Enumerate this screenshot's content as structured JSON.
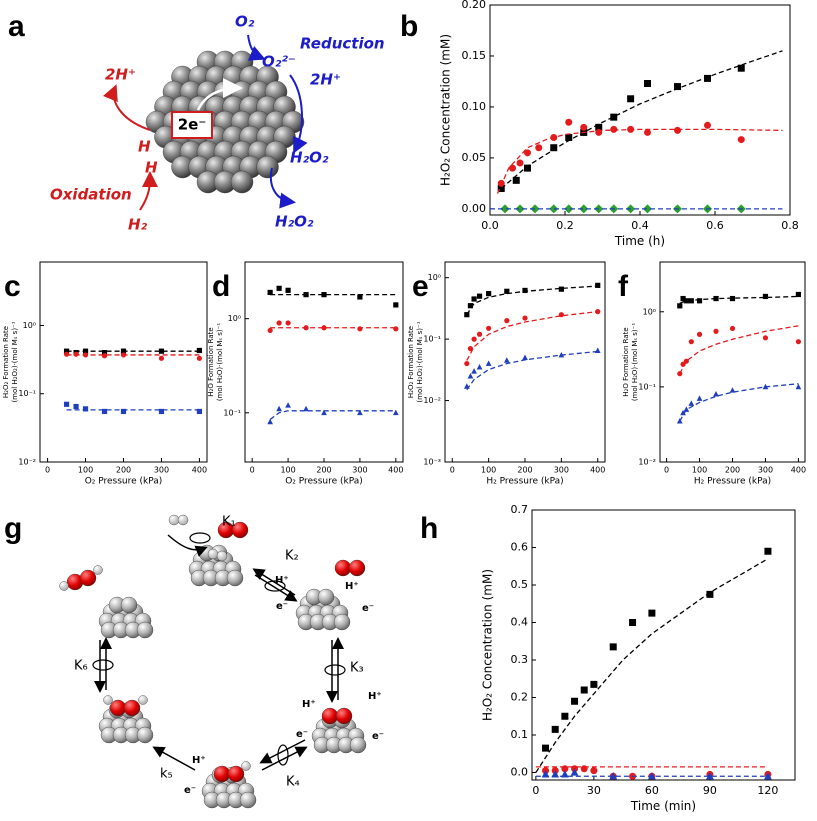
{
  "panel_labels": [
    "a",
    "b",
    "c",
    "d",
    "e",
    "f",
    "g",
    "h"
  ],
  "diagram_a": {
    "electrons": "2e⁻",
    "reduction": "Reduction",
    "oxidation": "Oxidation",
    "o2": "O₂",
    "superoxide": "O₂²⁻",
    "protons_blue": "2H⁺",
    "h2o2_surface": "H₂O₂",
    "h2o2_released": "H₂O₂",
    "protons_red": "2H⁺",
    "h_top": "H",
    "h_bottom": "H",
    "h2": "H₂"
  },
  "diagram_g": {
    "rates": [
      "K₁",
      "K₂",
      "K₃",
      "K₄",
      "k₅",
      "K₆"
    ],
    "species": [
      "H⁺",
      "H⁺",
      "e⁻",
      "e⁻",
      "H⁺",
      "H⁺",
      "e⁻",
      "e⁻",
      "H⁺",
      "e⁻"
    ]
  },
  "chart_data": [
    {
      "type": "scatter",
      "ylabel": [
        "H₂O₂ Concentration (mM)"
      ],
      "xlabel": "Time (h)",
      "xlim": [
        0,
        0.8
      ],
      "ylim": [
        -0.006,
        0.2
      ],
      "xticks": [
        {
          "value": 0,
          "label": "0.0"
        },
        0.2,
        0.4,
        0.6,
        0.8
      ],
      "yticks": [
        {
          "value": 0,
          "label": "0.00"
        },
        0.05,
        {
          "value": 0.1,
          "label": "0.10"
        },
        0.15,
        {
          "value": 0.2,
          "label": "0.20"
        }
      ],
      "series": [
        {
          "color": "#000000",
          "marker": "square",
          "x": [
            0.03,
            0.07,
            0.1,
            0.17,
            0.21,
            0.25,
            0.29,
            0.33,
            0.375,
            0.42,
            0.5,
            0.58,
            0.67
          ],
          "values": [
            0.02,
            0.028,
            0.04,
            0.06,
            0.07,
            0.075,
            0.08,
            0.09,
            0.108,
            0.123,
            0.12,
            0.128,
            0.138
          ]
        },
        {
          "color": "#e41a1c",
          "marker": "circle",
          "x": [
            0.03,
            0.06,
            0.08,
            0.1,
            0.13,
            0.17,
            0.21,
            0.25,
            0.29,
            0.33,
            0.375,
            0.42,
            0.5,
            0.58,
            0.67
          ],
          "values": [
            0.025,
            0.04,
            0.045,
            0.055,
            0.06,
            0.07,
            0.085,
            0.08,
            0.075,
            0.078,
            0.078,
            0.075,
            0.077,
            0.082,
            0.068
          ]
        },
        {
          "color": "#2ca02c",
          "marker": "diamond",
          "x": [
            0.04,
            0.08,
            0.12,
            0.17,
            0.21,
            0.25,
            0.29,
            0.33,
            0.375,
            0.42,
            0.5,
            0.58,
            0.67
          ],
          "values": [
            0,
            0,
            0,
            0,
            0,
            0,
            0,
            0,
            0,
            0,
            0,
            0,
            0
          ]
        },
        {
          "color": "#000000",
          "style": "dashed",
          "x": [
            0.03,
            0.1,
            0.2,
            0.3,
            0.4,
            0.5,
            0.6,
            0.7,
            0.78
          ],
          "values": [
            0.02,
            0.042,
            0.065,
            0.085,
            0.103,
            0.118,
            0.132,
            0.145,
            0.155
          ]
        },
        {
          "color": "#e41a1c",
          "style": "dashed",
          "x": [
            0.02,
            0.05,
            0.1,
            0.15,
            0.2,
            0.3,
            0.4,
            0.6,
            0.78
          ],
          "values": [
            0.015,
            0.04,
            0.06,
            0.068,
            0.073,
            0.077,
            0.078,
            0.078,
            0.077
          ]
        },
        {
          "color": "#1f3fbf",
          "style": "dashed",
          "x": [
            0,
            0.78
          ],
          "values": [
            0,
            0
          ]
        }
      ]
    },
    {
      "type": "scatter",
      "log_y": true,
      "ylabel": [
        "H₂O₂ Formation Rate",
        "(mol H₂O₂)·(mol Mₛ s)⁻¹"
      ],
      "xlabel": "O₂ Pressure (kPa)",
      "xlim": [
        -20,
        420
      ],
      "ylim": [
        0.01,
        8.5
      ],
      "xticks": [
        0,
        100,
        200,
        300,
        400
      ],
      "yticks": [
        {
          "value": 0.01,
          "label": "10⁻²"
        },
        {
          "value": 0.1,
          "label": "10⁻¹"
        },
        {
          "value": 1,
          "label": "10⁰"
        }
      ],
      "series": [
        {
          "color": "#000000",
          "marker": "square",
          "x": [
            50,
            75,
            100,
            150,
            200,
            300,
            400
          ],
          "values": [
            0.42,
            0.4,
            0.42,
            0.4,
            0.42,
            0.42,
            0.43
          ]
        },
        {
          "color": "#e41a1c",
          "marker": "circle",
          "x": [
            50,
            75,
            100,
            150,
            200,
            300,
            400
          ],
          "values": [
            0.38,
            0.38,
            0.37,
            0.36,
            0.37,
            0.33,
            0.33
          ]
        },
        {
          "color": "#1f3fbf",
          "marker": "square",
          "x": [
            50,
            75,
            100,
            150,
            200,
            300,
            400
          ],
          "values": [
            0.07,
            0.065,
            0.06,
            0.055,
            0.055,
            0.055,
            0.055
          ]
        },
        {
          "color": "#000000",
          "style": "dashed",
          "x": [
            50,
            400
          ],
          "values": [
            0.42,
            0.42
          ]
        },
        {
          "color": "#e41a1c",
          "style": "dashed",
          "x": [
            50,
            400
          ],
          "values": [
            0.37,
            0.37
          ]
        },
        {
          "color": "#1f3fbf",
          "style": "dashed",
          "x": [
            50,
            400
          ],
          "values": [
            0.058,
            0.058
          ]
        }
      ]
    },
    {
      "type": "scatter",
      "log_y": true,
      "ylabel": [
        "H₂O Formation Rate",
        "(mol H₂O)·(mol Mₛ s)⁻¹"
      ],
      "xlabel": "O₂ Pressure (kPa)",
      "xlim": [
        -20,
        420
      ],
      "ylim": [
        0.03,
        4
      ],
      "xticks": [
        0,
        100,
        200,
        300,
        400
      ],
      "yticks": [
        {
          "value": 0.1,
          "label": "10⁻¹"
        },
        {
          "value": 1,
          "label": "10⁰"
        }
      ],
      "series": [
        {
          "color": "#000000",
          "marker": "square",
          "x": [
            50,
            75,
            100,
            150,
            200,
            300,
            400
          ],
          "values": [
            1.9,
            2.1,
            2.0,
            1.8,
            1.8,
            1.7,
            1.4
          ]
        },
        {
          "color": "#e41a1c",
          "marker": "circle",
          "x": [
            50,
            75,
            100,
            150,
            200,
            300,
            400
          ],
          "values": [
            0.75,
            0.9,
            0.9,
            0.8,
            0.8,
            0.78,
            0.78
          ]
        },
        {
          "color": "#1f3fbf",
          "marker": "triangle",
          "x": [
            50,
            75,
            100,
            150,
            200,
            300,
            400
          ],
          "values": [
            0.08,
            0.11,
            0.12,
            0.11,
            0.1,
            0.1,
            0.1
          ]
        },
        {
          "color": "#000000",
          "style": "dashed",
          "x": [
            50,
            400
          ],
          "values": [
            1.8,
            1.8
          ]
        },
        {
          "color": "#e41a1c",
          "style": "dashed",
          "x": [
            50,
            400
          ],
          "values": [
            0.8,
            0.8
          ]
        },
        {
          "color": "#1f3fbf",
          "style": "dashed",
          "x": [
            50,
            75,
            100,
            400
          ],
          "values": [
            0.085,
            0.1,
            0.105,
            0.105
          ]
        }
      ]
    },
    {
      "type": "scatter",
      "log_y": true,
      "ylabel": [
        "H₂O₂ Formation Rate",
        "(mol H₂O₂)·(mol Mₛ s)⁻¹"
      ],
      "xlabel": "H₂ Pressure (kPa)",
      "xlim": [
        -20,
        420
      ],
      "ylim": [
        0.001,
        1.8
      ],
      "xticks": [
        0,
        100,
        200,
        300,
        400
      ],
      "yticks": [
        {
          "value": 0.001,
          "label": "10⁻³"
        },
        {
          "value": 0.01,
          "label": "10⁻²"
        },
        {
          "value": 0.1,
          "label": "10⁻¹"
        },
        {
          "value": 1,
          "label": "10⁰"
        }
      ],
      "series": [
        {
          "color": "#000000",
          "marker": "square",
          "x": [
            40,
            50,
            60,
            75,
            100,
            150,
            200,
            300,
            400
          ],
          "values": [
            0.25,
            0.35,
            0.45,
            0.5,
            0.55,
            0.6,
            0.62,
            0.65,
            0.75
          ]
        },
        {
          "color": "#e41a1c",
          "marker": "circle",
          "x": [
            40,
            50,
            60,
            75,
            100,
            150,
            200,
            300,
            400
          ],
          "values": [
            0.04,
            0.07,
            0.1,
            0.12,
            0.15,
            0.2,
            0.22,
            0.25,
            0.28
          ]
        },
        {
          "color": "#1f3fbf",
          "marker": "triangle",
          "x": [
            40,
            50,
            60,
            75,
            100,
            150,
            200,
            300,
            400
          ],
          "values": [
            0.017,
            0.025,
            0.03,
            0.035,
            0.04,
            0.045,
            0.05,
            0.055,
            0.065
          ]
        },
        {
          "color": "#000000",
          "style": "dashed",
          "x": [
            40,
            60,
            100,
            150,
            200,
            300,
            400
          ],
          "values": [
            0.25,
            0.38,
            0.48,
            0.55,
            0.6,
            0.67,
            0.73
          ]
        },
        {
          "color": "#e41a1c",
          "style": "dashed",
          "x": [
            40,
            60,
            100,
            150,
            200,
            300,
            400
          ],
          "values": [
            0.045,
            0.075,
            0.12,
            0.16,
            0.19,
            0.24,
            0.28
          ]
        },
        {
          "color": "#1f3fbf",
          "style": "dashed",
          "x": [
            40,
            60,
            100,
            150,
            200,
            300,
            400
          ],
          "values": [
            0.015,
            0.022,
            0.032,
            0.04,
            0.046,
            0.055,
            0.063
          ]
        }
      ]
    },
    {
      "type": "scatter",
      "log_y": true,
      "ylabel": [
        "H₂O Formation Rate",
        "(mol H₂O)·(mol Mₛ s)⁻¹"
      ],
      "xlabel": "H₂ Pressure (kPa)",
      "xlim": [
        -20,
        420
      ],
      "ylim": [
        0.01,
        4.6
      ],
      "xticks": [
        0,
        100,
        200,
        300,
        400
      ],
      "yticks": [
        {
          "value": 0.01,
          "label": "10⁻²"
        },
        {
          "value": 0.1,
          "label": "10⁻¹"
        },
        {
          "value": 1,
          "label": "10⁰"
        }
      ],
      "series": [
        {
          "color": "#000000",
          "marker": "square",
          "x": [
            40,
            50,
            60,
            75,
            100,
            150,
            200,
            300,
            400
          ],
          "values": [
            1.2,
            1.5,
            1.4,
            1.4,
            1.4,
            1.5,
            1.5,
            1.6,
            1.7
          ]
        },
        {
          "color": "#e41a1c",
          "marker": "circle",
          "x": [
            40,
            50,
            60,
            75,
            100,
            150,
            200,
            300,
            400
          ],
          "values": [
            0.15,
            0.2,
            0.22,
            0.4,
            0.5,
            0.55,
            0.6,
            0.45,
            0.4
          ]
        },
        {
          "color": "#1f3fbf",
          "marker": "triangle",
          "x": [
            40,
            50,
            60,
            75,
            100,
            150,
            200,
            300,
            400
          ],
          "values": [
            0.035,
            0.045,
            0.05,
            0.06,
            0.07,
            0.08,
            0.09,
            0.1,
            0.1
          ]
        },
        {
          "color": "#000000",
          "style": "dashed",
          "x": [
            40,
            60,
            100,
            150,
            200,
            300,
            400
          ],
          "values": [
            1.3,
            1.4,
            1.45,
            1.5,
            1.52,
            1.55,
            1.6
          ]
        },
        {
          "color": "#e41a1c",
          "style": "dashed",
          "x": [
            40,
            60,
            100,
            150,
            200,
            300,
            400
          ],
          "values": [
            0.15,
            0.22,
            0.3,
            0.37,
            0.43,
            0.55,
            0.65
          ]
        },
        {
          "color": "#1f3fbf",
          "style": "dashed",
          "x": [
            40,
            60,
            100,
            150,
            200,
            300,
            400
          ],
          "values": [
            0.035,
            0.05,
            0.062,
            0.075,
            0.085,
            0.1,
            0.11
          ]
        }
      ]
    },
    {
      "type": "scatter",
      "ylabel": [
        "H₂O₂ Concentration (mM)"
      ],
      "xlabel": "Time (min)",
      "xlim": [
        -2,
        134
      ],
      "ylim": [
        -0.02,
        0.7
      ],
      "xticks": [
        0,
        30,
        60,
        90,
        120
      ],
      "yticks": [
        {
          "value": 0,
          "label": "0.0"
        },
        0.1,
        0.2,
        0.3,
        0.4,
        0.5,
        0.6,
        0.7
      ],
      "series": [
        {
          "color": "#000000",
          "marker": "square",
          "x": [
            5,
            10,
            15,
            20,
            25,
            30,
            40,
            50,
            60,
            90,
            120
          ],
          "values": [
            0.065,
            0.115,
            0.15,
            0.19,
            0.22,
            0.235,
            0.335,
            0.4,
            0.425,
            0.475,
            0.59
          ]
        },
        {
          "color": "#e41a1c",
          "marker": "circle",
          "x": [
            5,
            10,
            15,
            20,
            25,
            30,
            40,
            50,
            60,
            90,
            120
          ],
          "values": [
            0.005,
            0.005,
            0.01,
            0.01,
            0.01,
            0.005,
            -0.01,
            -0.01,
            -0.01,
            -0.005,
            -0.005
          ]
        },
        {
          "color": "#1f3fbf",
          "marker": "triangle",
          "x": [
            5,
            10,
            15,
            20,
            40,
            60,
            90,
            120
          ],
          "values": [
            -0.005,
            -0.005,
            -0.005,
            0,
            -0.01,
            -0.01,
            -0.01,
            -0.01
          ]
        },
        {
          "color": "#000000",
          "style": "dashed",
          "x": [
            0,
            10,
            20,
            30,
            45,
            60,
            90,
            120
          ],
          "values": [
            0,
            0.08,
            0.15,
            0.21,
            0.3,
            0.37,
            0.48,
            0.57
          ]
        },
        {
          "color": "#e41a1c",
          "style": "dashed",
          "x": [
            0,
            120
          ],
          "values": [
            0.015,
            0.015
          ]
        },
        {
          "color": "#1f3fbf",
          "style": "dashed",
          "x": [
            0,
            120
          ],
          "values": [
            -0.01,
            -0.01
          ]
        }
      ]
    }
  ]
}
